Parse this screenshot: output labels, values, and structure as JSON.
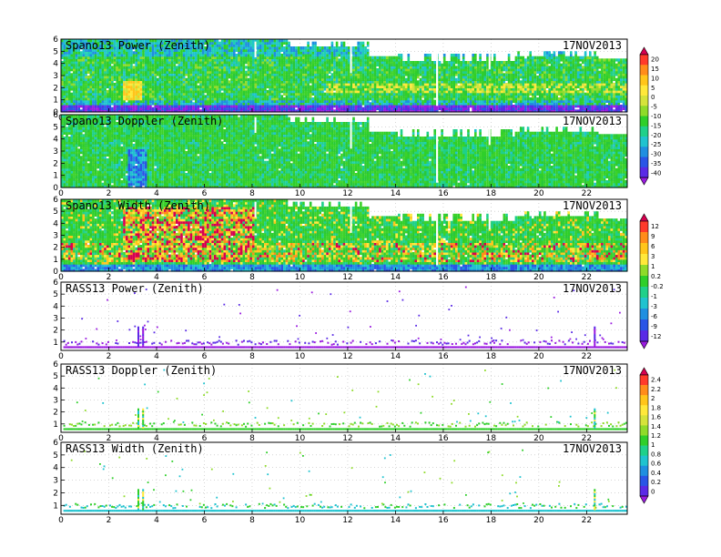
{
  "chart_data": [
    {
      "type": "heatmap",
      "title": "Spano13 Power (Zenith)",
      "date": "17NOV2013",
      "kind": "sodar",
      "colorbar_group": "a",
      "x_ticks": [
        0,
        2,
        4,
        6,
        8,
        10,
        12,
        14,
        16,
        18,
        20,
        22
      ],
      "y_ticks": [
        0,
        1,
        2,
        3,
        4,
        5,
        6
      ],
      "xlim": [
        0,
        23.7
      ],
      "ylim": [
        0,
        6
      ],
      "grid": true
    },
    {
      "type": "heatmap",
      "title": "Spano13 Doppler (Zenith)",
      "date": "17NOV2013",
      "kind": "sodar",
      "colorbar_group": "a",
      "x_ticks": [
        0,
        2,
        4,
        6,
        8,
        10,
        12,
        14,
        16,
        18,
        20,
        22
      ],
      "y_ticks": [
        0,
        1,
        2,
        3,
        4,
        5,
        6
      ],
      "xlim": [
        0,
        23.7
      ],
      "ylim": [
        0,
        6
      ],
      "grid": true
    },
    {
      "type": "heatmap",
      "title": "Spano13 Width (Zenith)",
      "date": "17NOV2013",
      "kind": "sodar",
      "colorbar_group": "b",
      "x_ticks": [
        0,
        2,
        4,
        6,
        8,
        10,
        12,
        14,
        16,
        18,
        20,
        22
      ],
      "y_ticks": [
        0,
        1,
        2,
        3,
        4,
        5,
        6
      ],
      "xlim": [
        0,
        23.7
      ],
      "ylim": [
        0,
        6
      ],
      "grid": true
    },
    {
      "type": "heatmap",
      "title": "RASS13 Power (Zenith)",
      "date": "17NOV2013",
      "kind": "rass",
      "colorbar_group": "b",
      "x_ticks": [
        0,
        2,
        4,
        6,
        8,
        10,
        12,
        14,
        16,
        18,
        20,
        22
      ],
      "y_ticks": [
        1,
        2,
        3,
        4,
        5,
        6
      ],
      "xlim": [
        0,
        23.7
      ],
      "ylim": [
        0.3,
        6
      ],
      "grid": true
    },
    {
      "type": "heatmap",
      "title": "RASS13 Doppler (Zenith)",
      "date": "17NOV2013",
      "kind": "rass",
      "colorbar_group": "c",
      "x_ticks": [
        0,
        2,
        4,
        6,
        8,
        10,
        12,
        14,
        16,
        18,
        20,
        22
      ],
      "y_ticks": [
        1,
        2,
        3,
        4,
        5,
        6
      ],
      "xlim": [
        0,
        23.7
      ],
      "ylim": [
        0.3,
        6
      ],
      "grid": true
    },
    {
      "type": "heatmap",
      "title": "RASS13 Width (Zenith)",
      "date": "17NOV2013",
      "kind": "rass",
      "colorbar_group": "c",
      "x_ticks": [
        0,
        2,
        4,
        6,
        8,
        10,
        12,
        14,
        16,
        18,
        20,
        22
      ],
      "y_ticks": [
        1,
        2,
        3,
        4,
        5,
        6
      ],
      "xlim": [
        0,
        23.7
      ],
      "ylim": [
        0.3,
        6
      ],
      "grid": true
    }
  ],
  "colorbars": [
    {
      "id": "a",
      "labels": [
        "20",
        "15",
        "10",
        "5",
        "0",
        "-5",
        "-10",
        "-15",
        "-20",
        "-25",
        "-30",
        "-35",
        "-40"
      ],
      "colors": [
        "#d7004f",
        "#ff3a2a",
        "#ff8c1a",
        "#ffc51a",
        "#ffe83a",
        "#d5e33a",
        "#8fdb2a",
        "#2fcf2a",
        "#1fd08a",
        "#1fc3cf",
        "#1f8fe0",
        "#2a55e6",
        "#5a2ae6",
        "#9a1ae0"
      ]
    },
    {
      "id": "b",
      "labels": [
        "12",
        "9",
        "6",
        "3",
        "1",
        "0.2",
        "-0.2",
        "-1",
        "-3",
        "-6",
        "-9",
        "-12"
      ],
      "colors": [
        "#d7004f",
        "#ff3a2a",
        "#ff8c1a",
        "#ffc51a",
        "#ffe83a",
        "#8fdb2a",
        "#2fcf2a",
        "#1fd08a",
        "#1fc3cf",
        "#1f8fe0",
        "#2a55e6",
        "#5a2ae6",
        "#9a1ae0"
      ]
    },
    {
      "id": "c",
      "labels": [
        "2.4",
        "2.2",
        "2",
        "1.8",
        "1.6",
        "1.4",
        "1.2",
        "1",
        "0.8",
        "0.6",
        "0.4",
        "0.2",
        "0"
      ],
      "colors": [
        "#d7004f",
        "#ff3a2a",
        "#ff8c1a",
        "#ffc51a",
        "#ffe83a",
        "#d5e33a",
        "#8fdb2a",
        "#2fcf2a",
        "#1fd08a",
        "#1fc3cf",
        "#1f8fe0",
        "#2a55e6",
        "#5a2ae6",
        "#9a1ae0"
      ]
    }
  ]
}
